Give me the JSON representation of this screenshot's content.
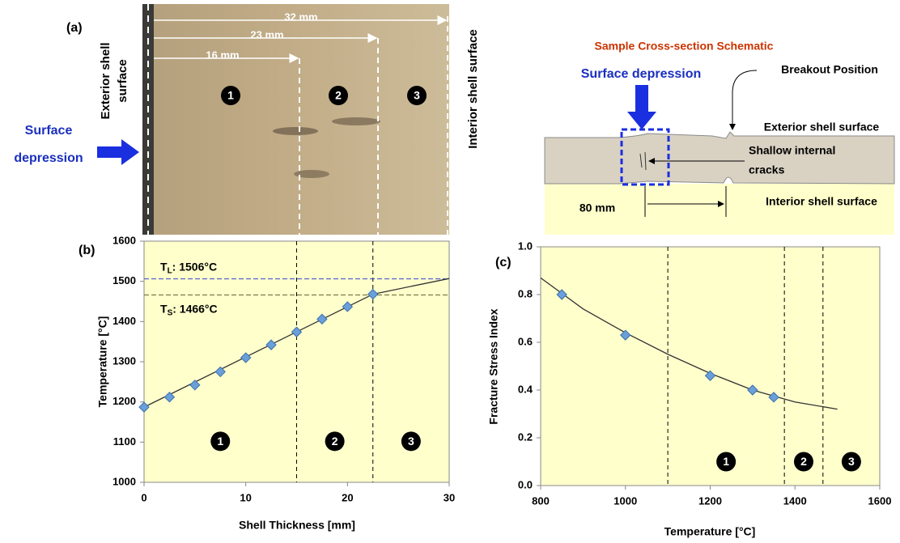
{
  "photo": {
    "panel_label": "(a)",
    "dimensions": [
      "32 mm",
      "23 mm",
      "16 mm"
    ],
    "regions": [
      "1",
      "2",
      "3"
    ],
    "exterior_label": [
      "Exterior shell",
      "surface"
    ],
    "interior_label": "Interior shell surface",
    "depression_label": [
      "Surface",
      "depression"
    ]
  },
  "schematic": {
    "title": "Sample Cross-section Schematic",
    "depression_label": "Surface depression",
    "breakout_label": "Breakout Position",
    "exterior_label": "Exterior shell surface",
    "cracks_label": [
      "Shallow internal",
      "cracks"
    ],
    "interior_label": "Interior shell surface",
    "width_label": "80 mm"
  },
  "chart_data": [
    {
      "type": "scatter",
      "panel_label": "(b)",
      "x_label": "Shell Thickness [mm]",
      "y_label": "Temperature [°C]",
      "xlim": [
        0,
        30
      ],
      "xticks": [
        0,
        10,
        20,
        30
      ],
      "ylim": [
        1000,
        1600
      ],
      "yticks": [
        1000,
        1100,
        1200,
        1300,
        1400,
        1500,
        1600
      ],
      "series": [
        {
          "color": "#6a9fd8",
          "marker": "diamond",
          "x": [
            0,
            2.5,
            5,
            7.5,
            10,
            12.5,
            15,
            17.5,
            20,
            22.5
          ],
          "values": [
            1187,
            1212,
            1242,
            1275,
            1310,
            1342,
            1374,
            1406,
            1437,
            1468
          ]
        },
        {
          "color": "#333333",
          "line": true,
          "x": [
            0,
            22.5,
            30
          ],
          "values": [
            1187,
            1468,
            1507
          ]
        }
      ],
      "vlines": [
        15,
        22.5
      ],
      "hlines": [
        {
          "value": 1506,
          "color": "#3344cc",
          "label": {
            "main": "T",
            "sub": "L",
            "rest": ": 1506°C"
          }
        },
        {
          "value": 1466,
          "color": "#666633",
          "label": {
            "main": "T",
            "sub": "S",
            "rest": ": 1466°C"
          }
        }
      ],
      "region_labels": [
        "1",
        "2",
        "3"
      ]
    },
    {
      "type": "scatter",
      "panel_label": "(c)",
      "x_label": "Temperature [°C]",
      "y_label": "Fracture Stress Index",
      "xlim": [
        800,
        1600
      ],
      "xticks": [
        800,
        1000,
        1200,
        1400,
        1600
      ],
      "ylim": [
        0,
        1
      ],
      "yticks": [
        {
          "value": 0,
          "label": "0.0"
        },
        0.2,
        0.4,
        0.6,
        0.8,
        {
          "value": 1,
          "label": "1.0"
        }
      ],
      "series": [
        {
          "color": "#6a9fd8",
          "marker": "diamond",
          "x": [
            850,
            1000,
            1200,
            1300,
            1350
          ],
          "values": [
            0.8,
            0.63,
            0.46,
            0.4,
            0.37
          ]
        },
        {
          "color": "#333333",
          "line": true,
          "x": [
            800,
            900,
            1000,
            1100,
            1200,
            1300,
            1400,
            1500
          ],
          "values": [
            0.87,
            0.74,
            0.64,
            0.55,
            0.47,
            0.4,
            0.35,
            0.32
          ]
        }
      ],
      "vlines": [
        1100,
        1375,
        1466
      ],
      "hlines": [],
      "region_labels": [
        "1",
        "2",
        "3"
      ]
    }
  ]
}
